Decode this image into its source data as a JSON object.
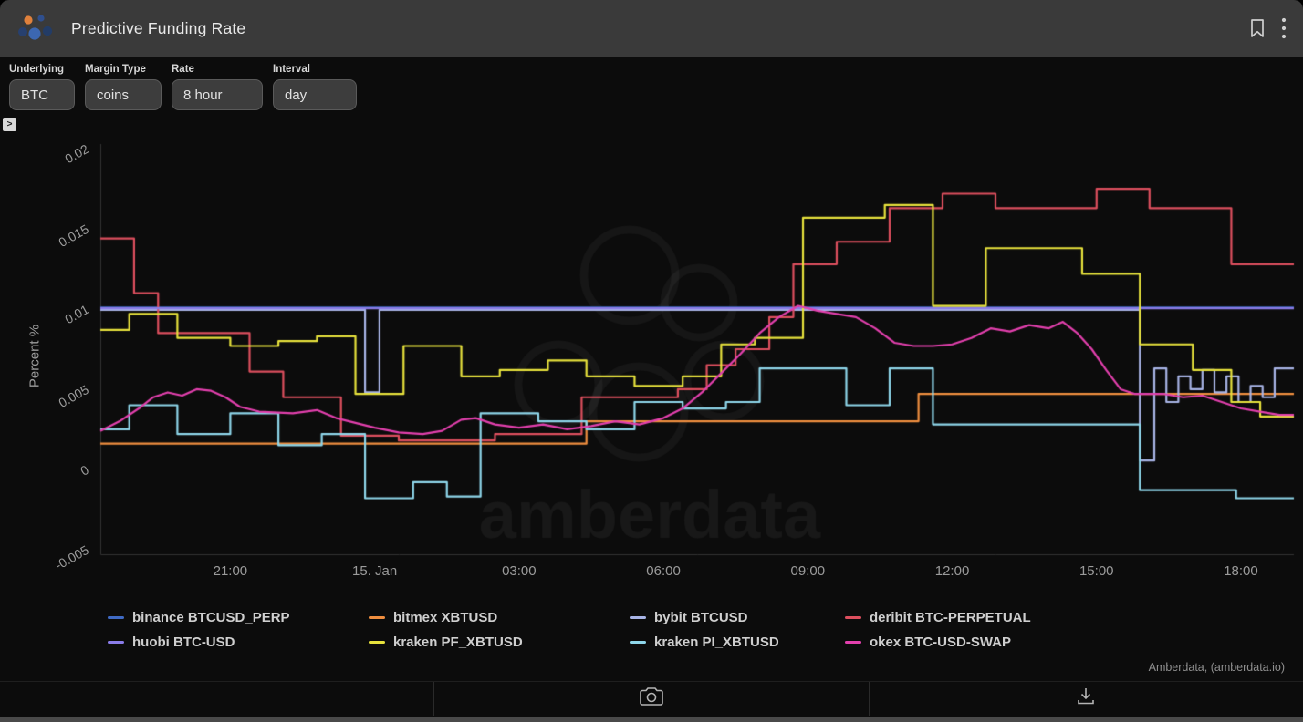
{
  "header": {
    "title": "Predictive Funding Rate",
    "icons": [
      "amberdata-logo",
      "bookmark",
      "kebab-menu"
    ]
  },
  "filters": [
    {
      "label": "Underlying",
      "value": "BTC"
    },
    {
      "label": "Margin Type",
      "value": "coins"
    },
    {
      "label": "Rate",
      "value": "8 hour"
    },
    {
      "label": "Interval",
      "value": "day"
    }
  ],
  "expander_glyph": ">",
  "watermark": "amberdata",
  "attribution": "Amberdata, (amberdata.io)",
  "toolbar": {
    "icons": [
      "camera",
      "download"
    ]
  },
  "chart_data": {
    "type": "line",
    "title": "Predictive Funding Rate",
    "ylabel": "Percent %",
    "xlabel": "",
    "grid": false,
    "legend_position": "bottom",
    "x_unit": "hours (x=3 corresponds to 21:00, x=6 to 15. Jan 00:00)",
    "xlim": [
      0.3,
      25.1
    ],
    "ylim": [
      -0.0053,
      0.0203
    ],
    "yticks": [
      {
        "pos": 0.02,
        "label": "0.02"
      },
      {
        "pos": 0.015,
        "label": "0.015"
      },
      {
        "pos": 0.01,
        "label": "0.01"
      },
      {
        "pos": 0.005,
        "label": "0.005"
      },
      {
        "pos": 0,
        "label": "0"
      },
      {
        "pos": -0.005,
        "label": "-0.005"
      }
    ],
    "xticks": [
      {
        "pos": 3,
        "label": "21:00"
      },
      {
        "pos": 6,
        "label": "15. Jan"
      },
      {
        "pos": 9,
        "label": "03:00"
      },
      {
        "pos": 12,
        "label": "06:00"
      },
      {
        "pos": 15,
        "label": "09:00"
      },
      {
        "pos": 18,
        "label": "12:00"
      },
      {
        "pos": 21,
        "label": "15:00"
      },
      {
        "pos": 24,
        "label": "18:00"
      }
    ],
    "series": [
      {
        "name": "binance BTCUSD_PERP",
        "color": "#3f6ac4",
        "step": true,
        "points": [
          [
            0.3,
            0.0101
          ],
          [
            25.1,
            0.0101
          ]
        ]
      },
      {
        "name": "bitmex XBTUSD",
        "color": "#ef8e3f",
        "step": true,
        "points": [
          [
            0.3,
            0.0016
          ],
          [
            10.4,
            0.003
          ],
          [
            17.3,
            0.0047
          ],
          [
            25.1,
            0.0047
          ]
        ]
      },
      {
        "name": "bybit BTCUSD",
        "color": "#a8b4e6",
        "step": true,
        "points": [
          [
            0.3,
            0.00995
          ],
          [
            5.8,
            0.0048
          ],
          [
            6.1,
            0.00995
          ],
          [
            21.9,
            0.00055
          ],
          [
            22.2,
            0.0063
          ],
          [
            22.45,
            0.0042
          ],
          [
            22.7,
            0.0058
          ],
          [
            22.95,
            0.005
          ],
          [
            23.2,
            0.0062
          ],
          [
            23.45,
            0.0048
          ],
          [
            23.7,
            0.0058
          ],
          [
            23.95,
            0.0042
          ],
          [
            24.2,
            0.0052
          ],
          [
            24.45,
            0.0045
          ],
          [
            24.7,
            0.0063
          ],
          [
            25.1,
            0.0063
          ]
        ]
      },
      {
        "name": "deribit BTC-PERPETUAL",
        "color": "#dd4f5e",
        "step": true,
        "points": [
          [
            0.3,
            0.0144
          ],
          [
            1.0,
            0.011
          ],
          [
            1.5,
            0.0085
          ],
          [
            3.4,
            0.0061
          ],
          [
            4.1,
            0.0045
          ],
          [
            5.3,
            0.0021
          ],
          [
            6.5,
            0.0018
          ],
          [
            8.5,
            0.0022
          ],
          [
            10.3,
            0.0045
          ],
          [
            12.3,
            0.005
          ],
          [
            12.9,
            0.0065
          ],
          [
            13.5,
            0.0075
          ],
          [
            14.2,
            0.0095
          ],
          [
            14.7,
            0.0128
          ],
          [
            15.6,
            0.0142
          ],
          [
            16.7,
            0.0163
          ],
          [
            17.8,
            0.0172
          ],
          [
            18.9,
            0.0163
          ],
          [
            21.0,
            0.0175
          ],
          [
            22.1,
            0.0163
          ],
          [
            23.8,
            0.0128
          ],
          [
            25.1,
            0.0128
          ]
        ]
      },
      {
        "name": "huobi BTC-USD",
        "color": "#8a7ce8",
        "step": true,
        "points": [
          [
            0.3,
            0.01005
          ],
          [
            25.1,
            0.01005
          ]
        ]
      },
      {
        "name": "kraken PF_XBTUSD",
        "color": "#e6e13c",
        "step": true,
        "points": [
          [
            0.3,
            0.0087
          ],
          [
            0.9,
            0.0097
          ],
          [
            1.9,
            0.0082
          ],
          [
            3.0,
            0.0077
          ],
          [
            4.0,
            0.008
          ],
          [
            4.8,
            0.0083
          ],
          [
            5.6,
            0.0047
          ],
          [
            6.6,
            0.0077
          ],
          [
            7.8,
            0.0058
          ],
          [
            8.6,
            0.0062
          ],
          [
            9.6,
            0.0068
          ],
          [
            10.4,
            0.0058
          ],
          [
            11.4,
            0.0052
          ],
          [
            12.4,
            0.0058
          ],
          [
            13.2,
            0.0078
          ],
          [
            13.9,
            0.0082
          ],
          [
            14.9,
            0.0157
          ],
          [
            16.6,
            0.0165
          ],
          [
            17.6,
            0.0102
          ],
          [
            18.7,
            0.0138
          ],
          [
            20.7,
            0.0122
          ],
          [
            21.9,
            0.0078
          ],
          [
            23.0,
            0.0062
          ],
          [
            23.8,
            0.0042
          ],
          [
            24.4,
            0.0033
          ],
          [
            25.1,
            0.0033
          ]
        ]
      },
      {
        "name": "kraken PI_XBTUSD",
        "color": "#8ed6ea",
        "step": true,
        "points": [
          [
            0.3,
            0.0025
          ],
          [
            0.9,
            0.004
          ],
          [
            1.9,
            0.0022
          ],
          [
            3.0,
            0.0035
          ],
          [
            4.0,
            0.0015
          ],
          [
            4.9,
            0.0022
          ],
          [
            5.8,
            -0.0018
          ],
          [
            6.8,
            -0.0008
          ],
          [
            7.5,
            -0.0017
          ],
          [
            8.2,
            0.0035
          ],
          [
            9.4,
            0.003
          ],
          [
            10.4,
            0.0025
          ],
          [
            11.4,
            0.0042
          ],
          [
            12.4,
            0.0038
          ],
          [
            13.3,
            0.0042
          ],
          [
            14.0,
            0.0063
          ],
          [
            15.8,
            0.004
          ],
          [
            16.7,
            0.0063
          ],
          [
            17.6,
            0.0028
          ],
          [
            21.9,
            -0.0013
          ],
          [
            23.9,
            -0.0018
          ],
          [
            25.1,
            -0.0018
          ]
        ]
      },
      {
        "name": "okex BTC-USD-SWAP",
        "color": "#e340ae",
        "step": false,
        "points": [
          [
            0.3,
            0.0024
          ],
          [
            0.7,
            0.003
          ],
          [
            1.1,
            0.0038
          ],
          [
            1.4,
            0.0045
          ],
          [
            1.7,
            0.0048
          ],
          [
            2.0,
            0.0046
          ],
          [
            2.3,
            0.005
          ],
          [
            2.6,
            0.0049
          ],
          [
            2.9,
            0.0045
          ],
          [
            3.2,
            0.0039
          ],
          [
            3.6,
            0.0036
          ],
          [
            4.3,
            0.0035
          ],
          [
            4.8,
            0.0037
          ],
          [
            5.2,
            0.0032
          ],
          [
            5.6,
            0.0029
          ],
          [
            6.0,
            0.0026
          ],
          [
            6.5,
            0.0023
          ],
          [
            7.0,
            0.0022
          ],
          [
            7.4,
            0.0024
          ],
          [
            7.8,
            0.0031
          ],
          [
            8.1,
            0.0032
          ],
          [
            8.5,
            0.0028
          ],
          [
            9.0,
            0.0026
          ],
          [
            9.5,
            0.0028
          ],
          [
            10.0,
            0.0025
          ],
          [
            10.5,
            0.0027
          ],
          [
            11.0,
            0.003
          ],
          [
            11.5,
            0.0028
          ],
          [
            12.0,
            0.0032
          ],
          [
            12.4,
            0.0038
          ],
          [
            12.8,
            0.0048
          ],
          [
            13.2,
            0.006
          ],
          [
            13.6,
            0.0072
          ],
          [
            14.0,
            0.0085
          ],
          [
            14.4,
            0.0095
          ],
          [
            14.8,
            0.0102
          ],
          [
            15.2,
            0.0099
          ],
          [
            15.6,
            0.0097
          ],
          [
            16.0,
            0.0095
          ],
          [
            16.4,
            0.0088
          ],
          [
            16.8,
            0.0079
          ],
          [
            17.2,
            0.0077
          ],
          [
            17.6,
            0.0077
          ],
          [
            18.0,
            0.0078
          ],
          [
            18.4,
            0.0082
          ],
          [
            18.8,
            0.0088
          ],
          [
            19.2,
            0.0086
          ],
          [
            19.6,
            0.009
          ],
          [
            20.0,
            0.0088
          ],
          [
            20.3,
            0.0092
          ],
          [
            20.6,
            0.0085
          ],
          [
            20.9,
            0.0075
          ],
          [
            21.2,
            0.0062
          ],
          [
            21.5,
            0.005
          ],
          [
            21.8,
            0.0047
          ],
          [
            22.4,
            0.0047
          ],
          [
            22.8,
            0.0045
          ],
          [
            23.2,
            0.0046
          ],
          [
            23.6,
            0.0042
          ],
          [
            24.0,
            0.0038
          ],
          [
            24.4,
            0.0036
          ],
          [
            24.8,
            0.0034
          ],
          [
            25.1,
            0.0034
          ]
        ]
      }
    ]
  }
}
